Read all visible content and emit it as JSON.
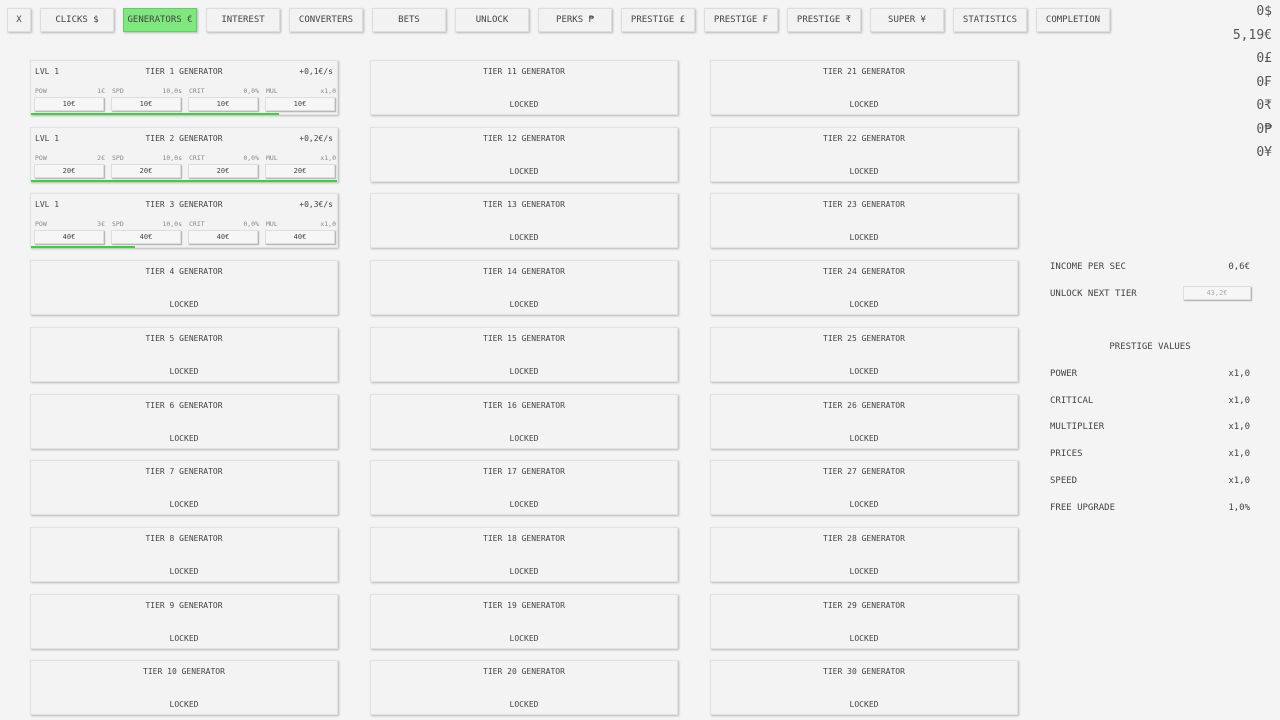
{
  "nav": [
    {
      "label": "X"
    },
    {
      "label": "CLICKS $"
    },
    {
      "label": "GENERATORS €",
      "active": true
    },
    {
      "label": "INTEREST"
    },
    {
      "label": "CONVERTERS"
    },
    {
      "label": "BETS"
    },
    {
      "label": "UNLOCK"
    },
    {
      "label": "PERKS ₱"
    },
    {
      "label": "PRESTIGE £"
    },
    {
      "label": "PRESTIGE ₣"
    },
    {
      "label": "PRESTIGE ₹"
    },
    {
      "label": "SUPER ¥"
    },
    {
      "label": "STATISTICS"
    },
    {
      "label": "COMPLETION"
    }
  ],
  "currencies": [
    "0$",
    "5,19€",
    "0£",
    "0₣",
    "0₹",
    "0₱",
    "0¥"
  ],
  "colors": {
    "accent": "#7ee87e",
    "progress": "#3ecf3e"
  },
  "generators": [
    {
      "title": "TIER 1 GENERATOR",
      "lvl": "LVL 1",
      "income": "+0,1€/s",
      "progress": 0.81,
      "stats": [
        [
          "POW",
          "1€",
          "10€"
        ],
        [
          "SPD",
          "10,0s",
          "10€"
        ],
        [
          "CRIT",
          "0,0%",
          "10€"
        ],
        [
          "MUL",
          "x1,0",
          "10€"
        ]
      ]
    },
    {
      "title": "TIER 2 GENERATOR",
      "lvl": "LVL 1",
      "income": "+0,2€/s",
      "progress": 1.0,
      "stats": [
        [
          "POW",
          "2€",
          "20€"
        ],
        [
          "SPD",
          "10,0s",
          "20€"
        ],
        [
          "CRIT",
          "0,0%",
          "20€"
        ],
        [
          "MUL",
          "x1,0",
          "20€"
        ]
      ]
    },
    {
      "title": "TIER 3 GENERATOR",
      "lvl": "LVL 1",
      "income": "+0,3€/s",
      "progress": 0.34,
      "stats": [
        [
          "POW",
          "3€",
          "40€"
        ],
        [
          "SPD",
          "10,0s",
          "40€"
        ],
        [
          "CRIT",
          "0,0%",
          "40€"
        ],
        [
          "MUL",
          "x1,0",
          "40€"
        ]
      ]
    },
    {
      "title": "TIER 4 GENERATOR",
      "locked": "LOCKED"
    },
    {
      "title": "TIER 5 GENERATOR",
      "locked": "LOCKED"
    },
    {
      "title": "TIER 6 GENERATOR",
      "locked": "LOCKED"
    },
    {
      "title": "TIER 7 GENERATOR",
      "locked": "LOCKED"
    },
    {
      "title": "TIER 8 GENERATOR",
      "locked": "LOCKED"
    },
    {
      "title": "TIER 9 GENERATOR",
      "locked": "LOCKED"
    },
    {
      "title": "TIER 10 GENERATOR",
      "locked": "LOCKED"
    },
    {
      "title": "TIER 11 GENERATOR",
      "locked": "LOCKED"
    },
    {
      "title": "TIER 12 GENERATOR",
      "locked": "LOCKED"
    },
    {
      "title": "TIER 13 GENERATOR",
      "locked": "LOCKED"
    },
    {
      "title": "TIER 14 GENERATOR",
      "locked": "LOCKED"
    },
    {
      "title": "TIER 15 GENERATOR",
      "locked": "LOCKED"
    },
    {
      "title": "TIER 16 GENERATOR",
      "locked": "LOCKED"
    },
    {
      "title": "TIER 17 GENERATOR",
      "locked": "LOCKED"
    },
    {
      "title": "TIER 18 GENERATOR",
      "locked": "LOCKED"
    },
    {
      "title": "TIER 19 GENERATOR",
      "locked": "LOCKED"
    },
    {
      "title": "TIER 20 GENERATOR",
      "locked": "LOCKED"
    },
    {
      "title": "TIER 21 GENERATOR",
      "locked": "LOCKED"
    },
    {
      "title": "TIER 22 GENERATOR",
      "locked": "LOCKED"
    },
    {
      "title": "TIER 23 GENERATOR",
      "locked": "LOCKED"
    },
    {
      "title": "TIER 24 GENERATOR",
      "locked": "LOCKED"
    },
    {
      "title": "TIER 25 GENERATOR",
      "locked": "LOCKED"
    },
    {
      "title": "TIER 26 GENERATOR",
      "locked": "LOCKED"
    },
    {
      "title": "TIER 27 GENERATOR",
      "locked": "LOCKED"
    },
    {
      "title": "TIER 28 GENERATOR",
      "locked": "LOCKED"
    },
    {
      "title": "TIER 29 GENERATOR",
      "locked": "LOCKED"
    },
    {
      "title": "TIER 30 GENERATOR",
      "locked": "LOCKED"
    }
  ],
  "side": {
    "income_label": "INCOME PER SEC",
    "income_value": "0,6€",
    "unlock_label": "UNLOCK NEXT TIER",
    "unlock_cost": "43,2€",
    "prestige_title": "PRESTIGE VALUES",
    "prestige": [
      [
        "POWER",
        "x1,0"
      ],
      [
        "CRITICAL",
        "x1,0"
      ],
      [
        "MULTIPLIER",
        "x1,0"
      ],
      [
        "PRICES",
        "x1,0"
      ],
      [
        "SPEED",
        "x1,0"
      ],
      [
        "FREE UPGRADE",
        "1,0%"
      ]
    ]
  }
}
